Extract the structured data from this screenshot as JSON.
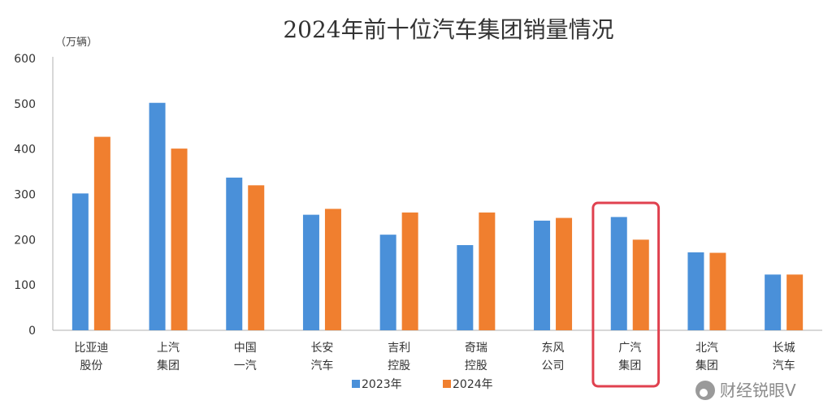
{
  "chart_data": {
    "type": "bar",
    "title": "2024年前十位汽车集团销量情况",
    "unit_label": "（万辆）",
    "categories": [
      [
        "比亚迪",
        "股份"
      ],
      [
        "上汽",
        "集团"
      ],
      [
        "中国",
        "一汽"
      ],
      [
        "长安",
        "汽车"
      ],
      [
        "吉利",
        "控股"
      ],
      [
        "奇瑞",
        "控股"
      ],
      [
        "东风",
        "公司"
      ],
      [
        "广汽",
        "集团"
      ],
      [
        "北汽",
        "集团"
      ],
      [
        "长城",
        "汽车"
      ]
    ],
    "series": [
      {
        "name": "2023年",
        "color": "#4a90d9",
        "values": [
          302,
          502,
          337,
          255,
          211,
          188,
          242,
          250,
          172,
          123
        ]
      },
      {
        "name": "2024年",
        "color": "#f07f2f",
        "values": [
          427,
          401,
          320,
          268,
          260,
          260,
          248,
          200,
          171,
          123
        ]
      }
    ],
    "ylim": [
      0,
      600
    ],
    "yticks": [
      0,
      100,
      200,
      300,
      400,
      500,
      600
    ],
    "legend_position": "bottom",
    "grid": false,
    "highlight": {
      "category_index": 7,
      "color": "#e0414f"
    }
  },
  "watermark": "财经锐眼V"
}
